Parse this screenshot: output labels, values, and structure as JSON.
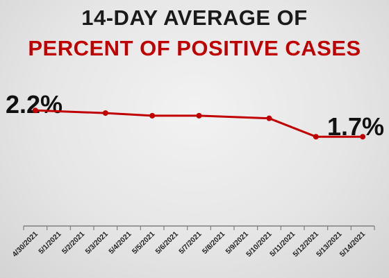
{
  "chart_data": {
    "type": "line",
    "title": "14-DAY AVERAGE OF",
    "subtitle": "PERCENT OF POSITIVE CASES",
    "categories": [
      "4/30/2021",
      "5/1/2021",
      "5/2/2021",
      "5/3/2021",
      "5/4/2021",
      "5/5/2021",
      "5/6/2021",
      "5/7/2021",
      "5/8/2021",
      "5/9/2021",
      "5/10/2021",
      "5/11/2021",
      "5/12/2021",
      "5/13/2021",
      "5/14/2021"
    ],
    "points": [
      {
        "x": "4/30/2021",
        "y": 2.2
      },
      {
        "x": "5/3/2021",
        "y": 2.15
      },
      {
        "x": "5/5/2021",
        "y": 2.1
      },
      {
        "x": "5/7/2021",
        "y": 2.1
      },
      {
        "x": "5/10/2021",
        "y": 2.05
      },
      {
        "x": "5/12/2021",
        "y": 1.7
      },
      {
        "x": "5/14/2021",
        "y": 1.7
      }
    ],
    "annotations": [
      {
        "label": "2.2%",
        "x": "4/30/2021"
      },
      {
        "label": "1.7%",
        "x": "5/14/2021"
      }
    ],
    "ylim": [
      0,
      2.6
    ],
    "grid": false,
    "line_color": "#c00000",
    "title_color": "#1a1a1a",
    "subtitle_color": "#c00000"
  }
}
